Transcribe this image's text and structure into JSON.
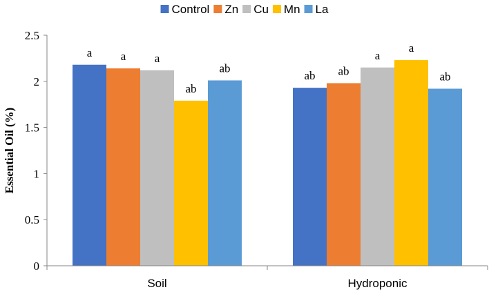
{
  "chart_data": {
    "type": "bar",
    "categories": [
      "Soil",
      "Hydroponic"
    ],
    "series": [
      {
        "name": "Control",
        "color": "#4472C4",
        "values": [
          2.18,
          1.93
        ],
        "labels": [
          "a",
          "ab"
        ]
      },
      {
        "name": "Zn",
        "color": "#ED7D31",
        "values": [
          2.14,
          1.98
        ],
        "labels": [
          "a",
          "ab"
        ]
      },
      {
        "name": "Cu",
        "color": "#BFBFBF",
        "values": [
          2.12,
          2.15
        ],
        "labels": [
          "a",
          "a"
        ]
      },
      {
        "name": "Mn",
        "color": "#FFC000",
        "values": [
          1.79,
          2.23
        ],
        "labels": [
          "ab",
          "a"
        ]
      },
      {
        "name": "La",
        "color": "#5B9BD5",
        "values": [
          2.01,
          1.92
        ],
        "labels": [
          "ab",
          "ab"
        ]
      }
    ],
    "ylabel": "Essential Oil  (%)",
    "ylim": [
      0,
      2.5
    ],
    "yticks": [
      "0",
      "0.5",
      "1",
      "1.5",
      "2",
      "2.5"
    ],
    "grid": false,
    "legend": "top"
  }
}
